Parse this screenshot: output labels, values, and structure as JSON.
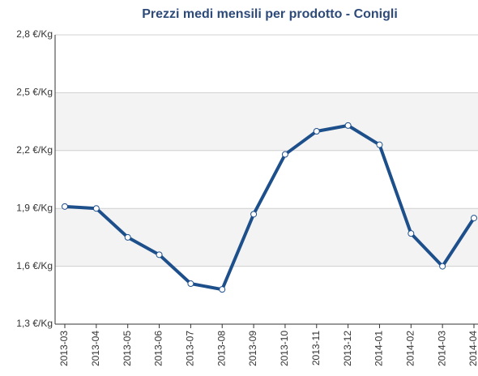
{
  "chart_data": {
    "type": "line",
    "title": "Prezzi medi mensili per prodotto - Conigli",
    "categories": [
      "2013-03",
      "2013-04",
      "2013-05",
      "2013-06",
      "2013-07",
      "2013-08",
      "2013-09",
      "2013-10",
      "2013-11",
      "2013-12",
      "2014-01",
      "2014-02",
      "2014-03",
      "2014-04"
    ],
    "series": [
      {
        "name": "Conigli",
        "color": "#1d4f8b",
        "values": [
          1.91,
          1.9,
          1.75,
          1.66,
          1.51,
          1.48,
          1.87,
          2.18,
          2.3,
          2.33,
          2.23,
          1.77,
          1.6,
          1.85
        ]
      }
    ],
    "ylim": [
      1.3,
      2.8
    ],
    "yticks": [
      {
        "value": 1.3,
        "label": "1,3 €/Kg"
      },
      {
        "value": 1.6,
        "label": "1,6 €/Kg"
      },
      {
        "value": 1.9,
        "label": "1,9 €/Kg"
      },
      {
        "value": 2.2,
        "label": "2,2 €/Kg"
      },
      {
        "value": 2.5,
        "label": "2,5 €/Kg"
      },
      {
        "value": 2.8,
        "label": "2,8 €/Kg"
      }
    ],
    "grid": true
  }
}
